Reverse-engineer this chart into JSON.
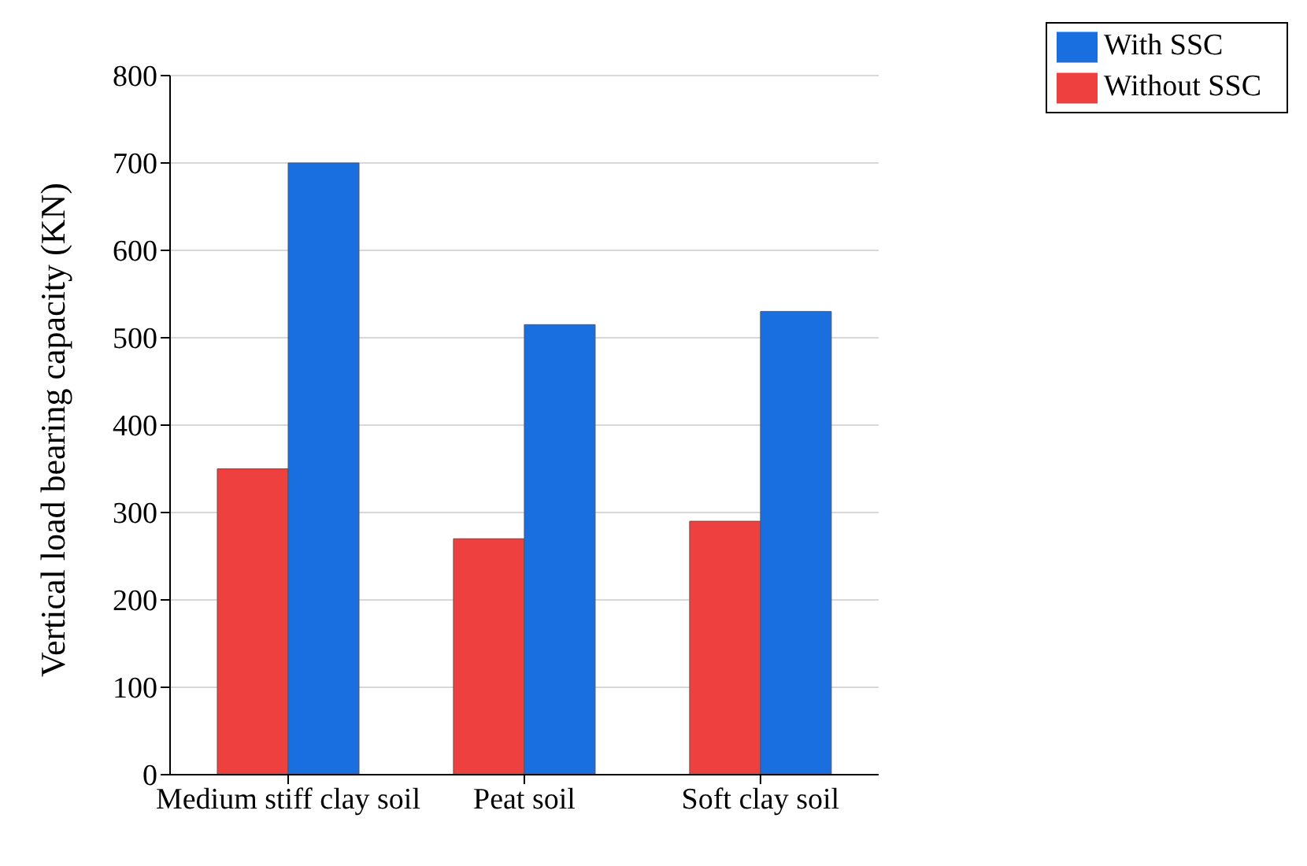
{
  "chart_data": {
    "type": "bar",
    "ylabel": "Vertical load bearing capacity (KN)",
    "categories": [
      "Medium stiff clay soil",
      "Peat soil",
      "Soft clay soil"
    ],
    "series": [
      {
        "name": "Without SSC",
        "color": "#ef4040",
        "values": [
          350,
          270,
          290
        ]
      },
      {
        "name": "With SSC",
        "color": "#1a6fe0",
        "values": [
          700,
          515,
          530
        ]
      }
    ],
    "ylim": [
      0,
      800
    ],
    "yticks": [
      0,
      100,
      200,
      300,
      400,
      500,
      600,
      700,
      800
    ],
    "grid": "y",
    "legend": "top right"
  }
}
